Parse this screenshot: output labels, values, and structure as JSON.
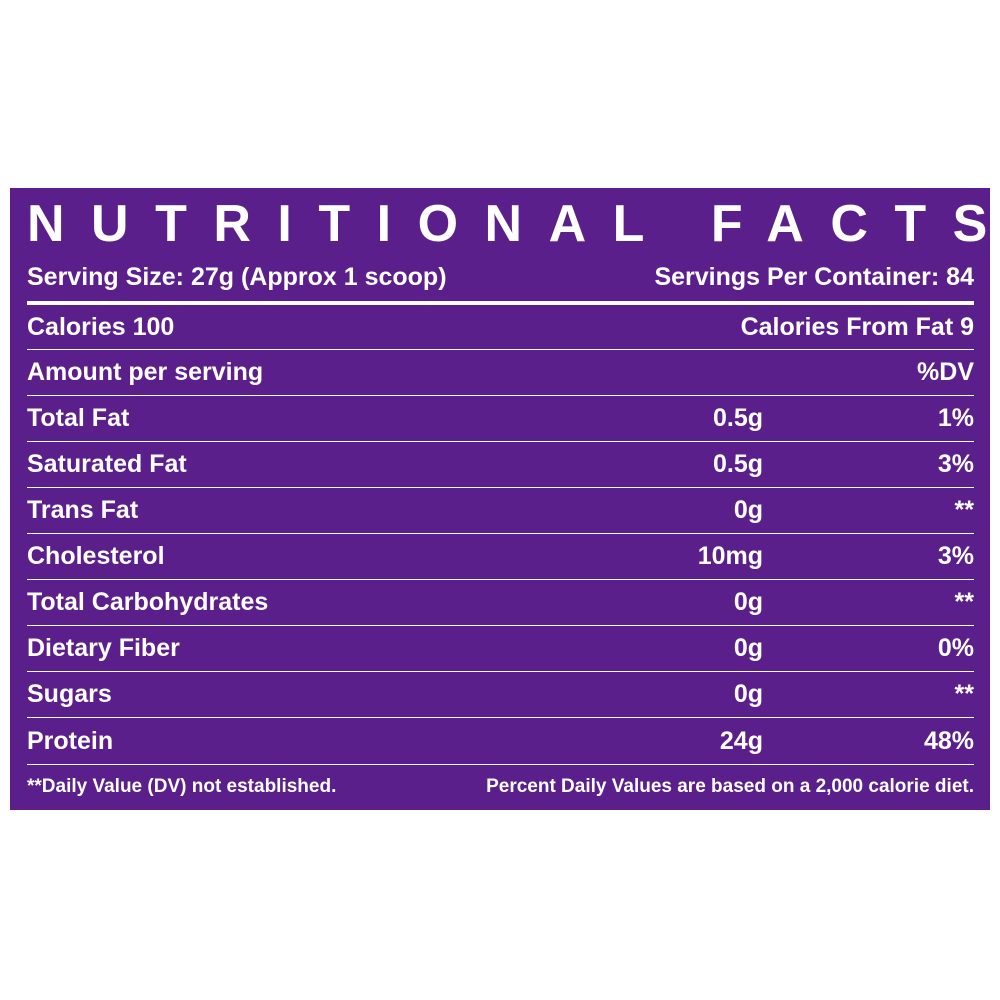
{
  "title": "NUTRITIONAL FACTS",
  "serving_size": "Serving Size: 27g  (Approx 1 scoop)",
  "servings_per_container": "Servings Per Container: 84",
  "calories": "Calories 100",
  "calories_from_fat": "Calories From Fat 9",
  "amount_header": "Amount per serving",
  "dv_header": "%DV",
  "rows": [
    [
      "Total Fat",
      "0.5g",
      "1%"
    ],
    [
      "Saturated Fat",
      "0.5g",
      "3%"
    ],
    [
      "Trans Fat",
      "0g",
      "**"
    ],
    [
      "Cholesterol",
      "10mg",
      "3%"
    ],
    [
      "Total Carbohydrates",
      "0g",
      "**"
    ],
    [
      "Dietary Fiber",
      "0g",
      "0%"
    ],
    [
      "Sugars",
      "0g",
      "**"
    ],
    [
      "Protein",
      "24g",
      "48%"
    ]
  ],
  "footnote_left": "**Daily Value (DV) not established.",
  "footnote_right": "Percent Daily Values are based on a 2,000 calorie diet."
}
